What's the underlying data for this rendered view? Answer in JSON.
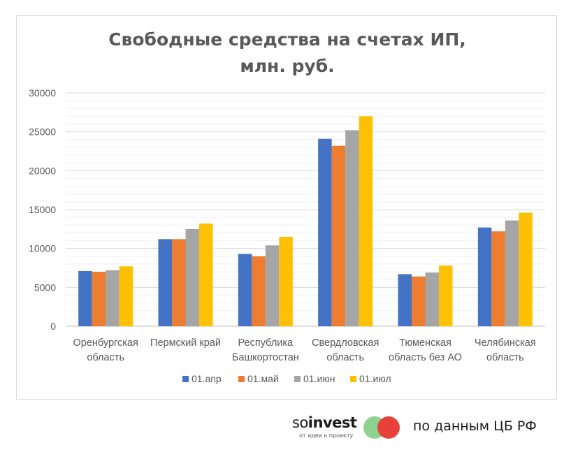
{
  "chart_data": {
    "type": "bar",
    "title_lines": [
      "Свободные средства на счетах ИП,",
      "млн. руб."
    ],
    "categories": [
      [
        "Оренбургская",
        "область"
      ],
      [
        "Пермский край"
      ],
      [
        "Республика",
        "Башкортостан"
      ],
      [
        "Свердловская",
        "область"
      ],
      [
        "Тюменская",
        "область без АО"
      ],
      [
        "Челябинская",
        "область"
      ]
    ],
    "series": [
      {
        "name": "01.апр",
        "color": "#4472C4",
        "values": [
          7100,
          11200,
          9300,
          24100,
          6700,
          12700
        ]
      },
      {
        "name": "01.май",
        "color": "#ED7D31",
        "values": [
          7000,
          11200,
          9000,
          23200,
          6400,
          12200
        ]
      },
      {
        "name": "01.июн",
        "color": "#A5A5A5",
        "values": [
          7200,
          12500,
          10400,
          25200,
          6900,
          13600
        ]
      },
      {
        "name": "01.июл",
        "color": "#FFC000",
        "values": [
          7700,
          13200,
          11500,
          27000,
          7800,
          14600
        ]
      }
    ],
    "yticks": [
      "0",
      "5000",
      "10000",
      "15000",
      "20000",
      "25000",
      "30000"
    ],
    "ylim": [
      0,
      30000
    ],
    "xlabel": "",
    "ylabel": "",
    "legend_position": "bottom",
    "grid": true
  },
  "footer": {
    "brand_prefix": "so",
    "brand_bold": "invest",
    "tagline": "от идеи к проекту",
    "source": "по данным ЦБ РФ",
    "logo_colors": [
      "#8fd18f",
      "#e8413a"
    ]
  }
}
